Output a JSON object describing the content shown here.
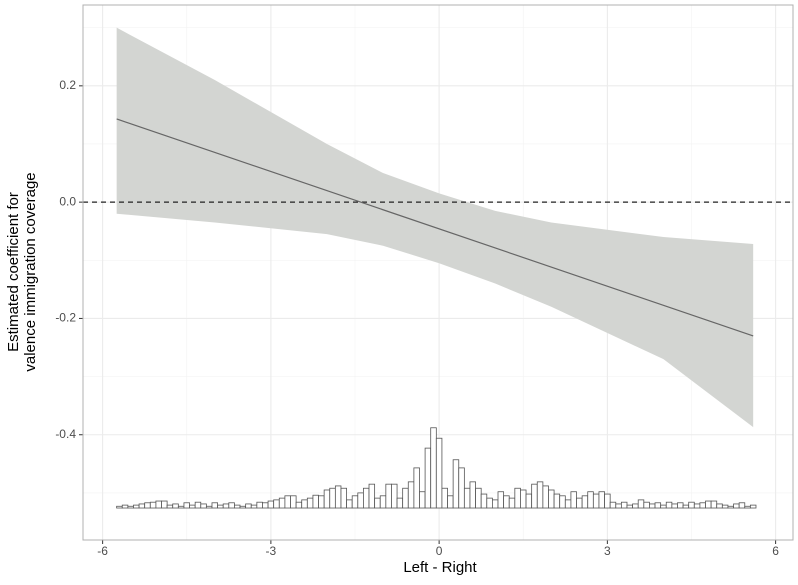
{
  "chart_data": {
    "type": "marginal-effect",
    "xlabel": "Left - Right",
    "ylabel": [
      "Estimated coefficient for",
      "valence immigration coverage"
    ],
    "xlim": [
      -6.35,
      6.31
    ],
    "ylim": [
      -0.581,
      0.339
    ],
    "xticks": [
      -6,
      -3,
      0,
      3,
      6
    ],
    "yticks": [
      -0.4,
      -0.2,
      {
        "value": 0,
        "label": "0.0"
      },
      0.2
    ],
    "minor_xticks": [
      -4.5,
      -1.5,
      1.5,
      4.5
    ],
    "minor_yticks": [
      -0.5,
      -0.3,
      -0.1,
      0.1,
      0.3
    ],
    "grid": true,
    "hline": 0,
    "band": {
      "color": "#d3d5d2",
      "x": [
        -5.75,
        -4,
        -2,
        -1,
        0,
        1,
        2,
        4,
        5.6
      ],
      "upper": [
        0.3,
        0.21,
        0.1,
        0.05,
        0.015,
        -0.015,
        -0.035,
        -0.06,
        -0.072
      ],
      "lower": [
        -0.02,
        -0.035,
        -0.055,
        -0.075,
        -0.105,
        -0.14,
        -0.18,
        -0.27,
        -0.387
      ]
    },
    "line": {
      "color": "#666666",
      "x": [
        -5.75,
        5.6
      ],
      "values": [
        0.143,
        -0.23
      ]
    },
    "histogram": {
      "base": -0.526,
      "bins": [
        -5.75,
        -5.65,
        -5.55,
        -5.45,
        -5.35,
        -5.25,
        -5.15,
        -5.05,
        -4.95,
        -4.85,
        -4.75,
        -4.65,
        -4.55,
        -4.45,
        -4.35,
        -4.25,
        -4.15,
        -4.05,
        -3.95,
        -3.85,
        -3.75,
        -3.65,
        -3.55,
        -3.45,
        -3.35,
        -3.25,
        -3.15,
        -3.05,
        -2.95,
        -2.85,
        -2.75,
        -2.65,
        -2.55,
        -2.45,
        -2.35,
        -2.25,
        -2.15,
        -2.05,
        -1.95,
        -1.85,
        -1.75,
        -1.65,
        -1.55,
        -1.45,
        -1.35,
        -1.25,
        -1.15,
        -1.05,
        -0.95,
        -0.85,
        -0.75,
        -0.65,
        -0.55,
        -0.45,
        -0.35,
        -0.25,
        -0.15,
        -0.05,
        0.05,
        0.15,
        0.25,
        0.35,
        0.45,
        0.55,
        0.65,
        0.75,
        0.85,
        0.95,
        1.05,
        1.15,
        1.25,
        1.35,
        1.45,
        1.55,
        1.65,
        1.75,
        1.85,
        1.95,
        2.05,
        2.15,
        2.25,
        2.35,
        2.45,
        2.55,
        2.65,
        2.75,
        2.85,
        2.95,
        3.05,
        3.15,
        3.25,
        3.35,
        3.45,
        3.55,
        3.65,
        3.75,
        3.85,
        3.95,
        4.05,
        4.15,
        4.25,
        4.35,
        4.45,
        4.55,
        4.65,
        4.75,
        4.85,
        4.95,
        5.05,
        5.15,
        5.25,
        5.35,
        5.45,
        5.55,
        5.65
      ],
      "values": [
        0.003,
        0.005,
        0.003,
        0.005,
        0.007,
        0.009,
        0.01,
        0.012,
        0.012,
        0.005,
        0.007,
        0.003,
        0.009,
        0.005,
        0.01,
        0.007,
        0.003,
        0.009,
        0.005,
        0.007,
        0.009,
        0.005,
        0.003,
        0.007,
        0.005,
        0.01,
        0.009,
        0.012,
        0.014,
        0.017,
        0.021,
        0.021,
        0.01,
        0.014,
        0.017,
        0.022,
        0.021,
        0.031,
        0.034,
        0.038,
        0.034,
        0.014,
        0.021,
        0.026,
        0.034,
        0.041,
        0.017,
        0.021,
        0.041,
        0.041,
        0.017,
        0.034,
        0.045,
        0.069,
        0.028,
        0.103,
        0.138,
        0.12,
        0.034,
        0.021,
        0.083,
        0.069,
        0.034,
        0.045,
        0.034,
        0.024,
        0.017,
        0.014,
        0.028,
        0.021,
        0.017,
        0.034,
        0.031,
        0.024,
        0.041,
        0.045,
        0.038,
        0.031,
        0.024,
        0.021,
        0.014,
        0.028,
        0.017,
        0.021,
        0.028,
        0.024,
        0.028,
        0.024,
        0.01,
        0.007,
        0.01,
        0.005,
        0.007,
        0.014,
        0.01,
        0.007,
        0.009,
        0.005,
        0.01,
        0.007,
        0.009,
        0.005,
        0.01,
        0.007,
        0.009,
        0.012,
        0.012,
        0.007,
        0.005,
        0.003,
        0.007,
        0.009,
        0.003,
        0.005
      ]
    }
  }
}
